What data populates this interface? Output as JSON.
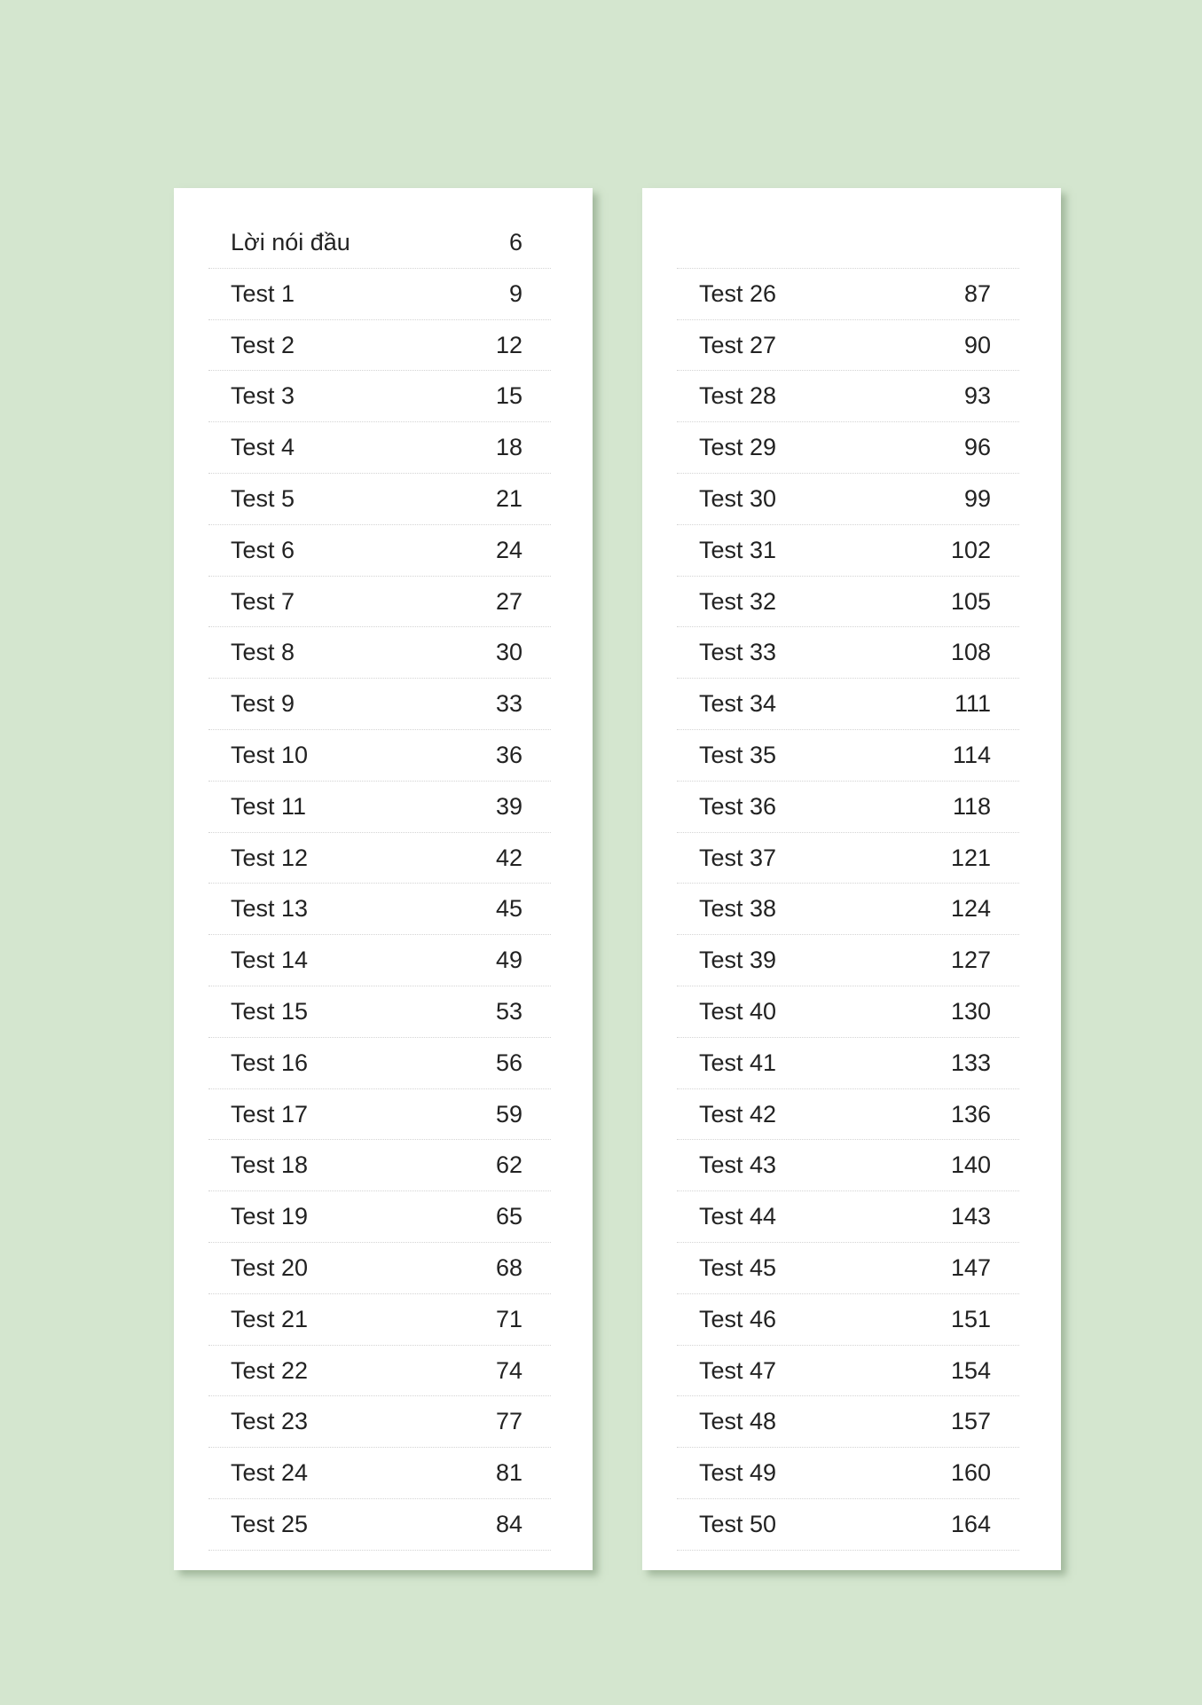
{
  "colors": {
    "background": "#d4e6cf",
    "panel": "#ffffff",
    "text": "#222222"
  },
  "columns": [
    {
      "rows": [
        {
          "label": "Lời nói đầu",
          "page": "6"
        },
        {
          "label": "Test 1",
          "page": "9"
        },
        {
          "label": "Test 2",
          "page": "12"
        },
        {
          "label": "Test 3",
          "page": "15"
        },
        {
          "label": "Test 4",
          "page": "18"
        },
        {
          "label": "Test 5",
          "page": "21"
        },
        {
          "label": "Test 6",
          "page": "24"
        },
        {
          "label": "Test 7",
          "page": "27"
        },
        {
          "label": "Test 8",
          "page": "30"
        },
        {
          "label": "Test 9",
          "page": "33"
        },
        {
          "label": "Test 10",
          "page": "36"
        },
        {
          "label": "Test 11",
          "page": "39"
        },
        {
          "label": "Test 12",
          "page": "42"
        },
        {
          "label": "Test 13",
          "page": "45"
        },
        {
          "label": "Test 14",
          "page": "49"
        },
        {
          "label": "Test 15",
          "page": "53"
        },
        {
          "label": "Test 16",
          "page": "56"
        },
        {
          "label": "Test 17",
          "page": "59"
        },
        {
          "label": "Test 18",
          "page": "62"
        },
        {
          "label": "Test 19",
          "page": "65"
        },
        {
          "label": "Test 20",
          "page": "68"
        },
        {
          "label": "Test 21",
          "page": "71"
        },
        {
          "label": "Test 22",
          "page": "74"
        },
        {
          "label": "Test 23",
          "page": "77"
        },
        {
          "label": "Test 24",
          "page": "81"
        },
        {
          "label": "Test 25",
          "page": "84"
        }
      ]
    },
    {
      "rows": [
        {
          "label": "",
          "page": ""
        },
        {
          "label": "Test 26",
          "page": "87"
        },
        {
          "label": "Test 27",
          "page": "90"
        },
        {
          "label": "Test 28",
          "page": "93"
        },
        {
          "label": "Test 29",
          "page": "96"
        },
        {
          "label": "Test 30",
          "page": "99"
        },
        {
          "label": "Test 31",
          "page": "102"
        },
        {
          "label": "Test 32",
          "page": "105"
        },
        {
          "label": "Test 33",
          "page": "108"
        },
        {
          "label": "Test 34",
          "page": "111"
        },
        {
          "label": "Test 35",
          "page": "114"
        },
        {
          "label": "Test 36",
          "page": "118"
        },
        {
          "label": "Test 37",
          "page": "121"
        },
        {
          "label": "Test 38",
          "page": "124"
        },
        {
          "label": "Test 39",
          "page": "127"
        },
        {
          "label": "Test 40",
          "page": "130"
        },
        {
          "label": "Test 41",
          "page": "133"
        },
        {
          "label": "Test 42",
          "page": "136"
        },
        {
          "label": "Test 43",
          "page": "140"
        },
        {
          "label": "Test 44",
          "page": "143"
        },
        {
          "label": "Test 45",
          "page": "147"
        },
        {
          "label": "Test 46",
          "page": "151"
        },
        {
          "label": "Test 47",
          "page": "154"
        },
        {
          "label": "Test 48",
          "page": "157"
        },
        {
          "label": "Test 49",
          "page": "160"
        },
        {
          "label": "Test 50",
          "page": "164"
        }
      ]
    }
  ]
}
